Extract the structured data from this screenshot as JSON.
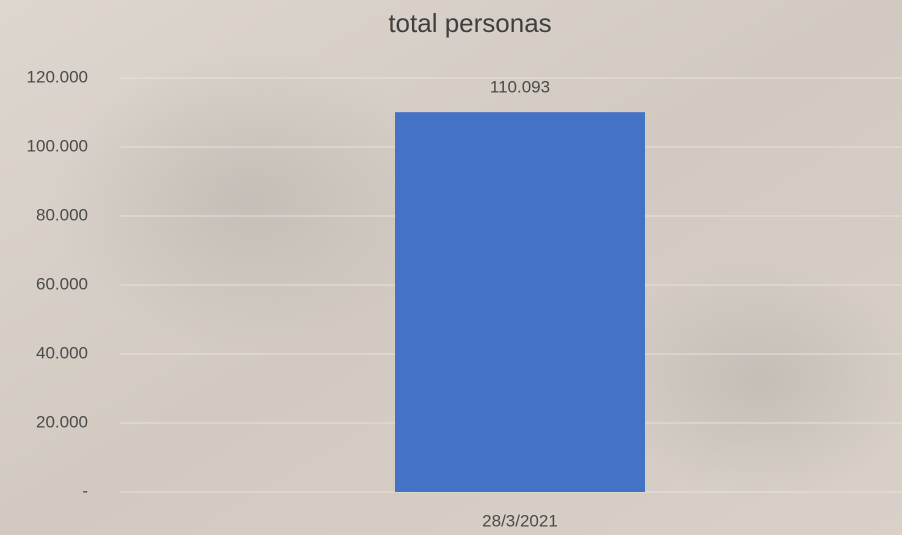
{
  "chart_data": {
    "type": "bar",
    "title": "total personas",
    "categories": [
      "28/3/2021"
    ],
    "values": [
      110093
    ],
    "value_labels": [
      "110.093"
    ],
    "color": "#4472c4",
    "ylim": [
      0,
      120000
    ],
    "yticks": [
      {
        "value": 0,
        "label": "-"
      },
      {
        "value": 20000,
        "label": "20.000"
      },
      {
        "value": 40000,
        "label": "40.000"
      },
      {
        "value": 60000,
        "label": "60.000"
      },
      {
        "value": 80000,
        "label": "80.000"
      },
      {
        "value": 100000,
        "label": "100.000"
      },
      {
        "value": 120000,
        "label": "120.000"
      }
    ],
    "grid": true
  }
}
